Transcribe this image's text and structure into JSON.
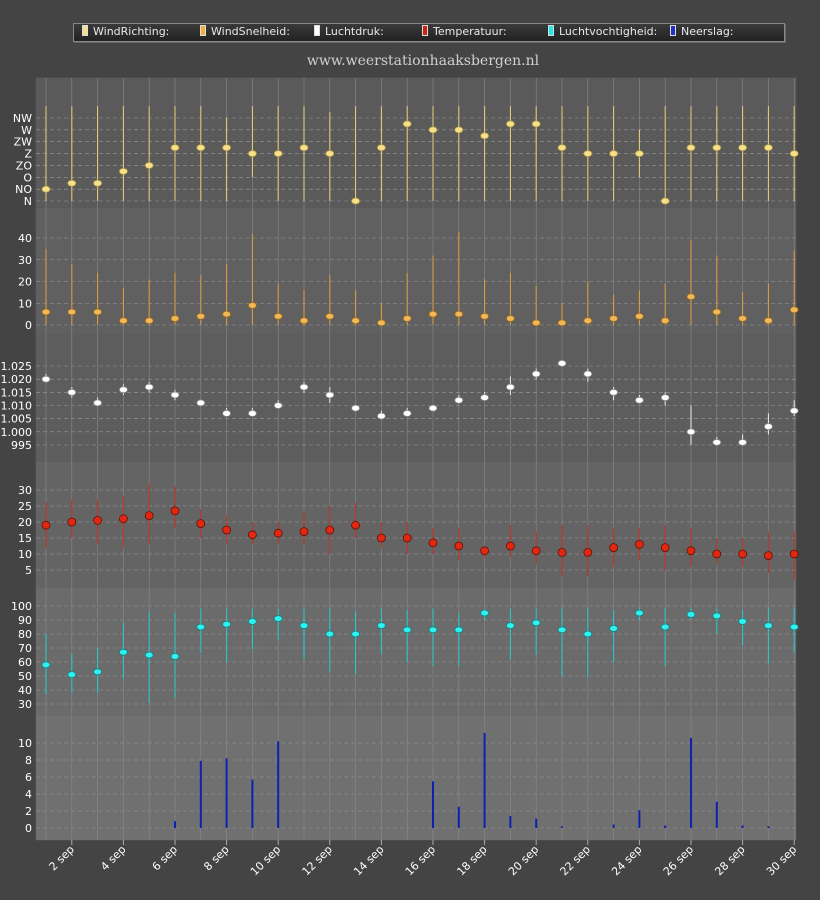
{
  "legend": {
    "items": [
      {
        "label": "WindRichting:",
        "color": "#f5e08c"
      },
      {
        "label": "WindSnelheid:",
        "color": "#f0b040"
      },
      {
        "label": "Luchtdruk:",
        "color": "#ffffff"
      },
      {
        "label": "Temperatuur:",
        "color": "#d02010"
      },
      {
        "label": "Luchtvochtigheid:",
        "color": "#20e8e8"
      },
      {
        "label": "Neerslag:",
        "color": "#2030c8"
      }
    ]
  },
  "site_title": "www.weerstationhaaksbergen.nl",
  "chart_data": {
    "type": "line",
    "grid": true,
    "x": [
      "1 sep",
      "2 sep",
      "3 sep",
      "4 sep",
      "5 sep",
      "6 sep",
      "7 sep",
      "8 sep",
      "9 sep",
      "10 sep",
      "11 sep",
      "12 sep",
      "13 sep",
      "14 sep",
      "15 sep",
      "16 sep",
      "17 sep",
      "18 sep",
      "19 sep",
      "20 sep",
      "21 sep",
      "22 sep",
      "23 sep",
      "24 sep",
      "25 sep",
      "26 sep",
      "27 sep",
      "28 sep",
      "29 sep",
      "30 sep"
    ],
    "x_tick_labels": [
      "2 sep",
      "4 sep",
      "6 sep",
      "8 sep",
      "10 sep",
      "12 sep",
      "14 sep",
      "16 sep",
      "18 sep",
      "20 sep",
      "22 sep",
      "24 sep",
      "26 sep",
      "28 sep",
      "30 sep"
    ],
    "panels": [
      {
        "name": "WindRichting",
        "type": "scatter",
        "y_tick_labels": [
          "N",
          "NO",
          "O",
          "ZO",
          "Z",
          "ZW",
          "W",
          "NW"
        ],
        "ylim": [
          0,
          7
        ],
        "values": [
          1,
          1.5,
          1.5,
          2.5,
          3,
          4.5,
          4.5,
          4.5,
          4,
          4,
          4.5,
          4,
          0,
          4.5,
          6.5,
          6,
          6,
          5.5,
          6.5,
          6.5,
          4.5,
          4,
          4,
          4,
          0,
          4.5,
          4.5,
          4.5,
          4.5,
          4
        ],
        "low": [
          0,
          0,
          0,
          0,
          0,
          0,
          0,
          0,
          2,
          0,
          0,
          0,
          0,
          0,
          0,
          0,
          0,
          0,
          0,
          0,
          0,
          0,
          0,
          2,
          0,
          0,
          0,
          0,
          0,
          0
        ],
        "high": [
          8,
          8,
          8,
          8,
          8,
          8,
          8,
          7,
          8,
          8,
          8,
          7.5,
          8,
          8,
          8,
          8,
          8,
          8,
          8,
          8,
          8,
          8,
          8,
          6,
          8,
          8,
          8,
          8,
          8,
          8
        ]
      },
      {
        "name": "WindSnelheid",
        "type": "scatter",
        "y_tick_labels": [
          "0",
          "10",
          "20",
          "30",
          "40"
        ],
        "ylim": [
          0,
          45
        ],
        "values": [
          6,
          6,
          6,
          2,
          2,
          3,
          4,
          5,
          9,
          4,
          2,
          4,
          2,
          1,
          3,
          5,
          5,
          4,
          3,
          1,
          1,
          2,
          3,
          4,
          2,
          13,
          6,
          3,
          2,
          7
        ],
        "low": [
          0,
          0,
          0,
          0,
          0,
          0,
          0,
          0,
          0,
          0,
          0,
          0,
          0,
          0,
          0,
          0,
          0,
          0,
          0,
          0,
          0,
          0,
          0,
          0,
          0,
          0,
          0,
          0,
          0,
          0
        ],
        "high": [
          35,
          28,
          24,
          17,
          21,
          24,
          23,
          28,
          42,
          19,
          16,
          23,
          16,
          10,
          24,
          32,
          43,
          21,
          24,
          18,
          10,
          20,
          14,
          16,
          19,
          39,
          32,
          15,
          19,
          34
        ]
      },
      {
        "name": "Luchtdruk",
        "type": "scatter",
        "y_tick_labels": [
          "995",
          "1.000",
          "1.005",
          "1.010",
          "1.015",
          "1.020",
          "1.025"
        ],
        "ylim": [
          992,
          1029
        ],
        "values": [
          1020,
          1015,
          1011,
          1016,
          1017,
          1014,
          1011,
          1007,
          1007,
          1010,
          1017,
          1014,
          1009,
          1006,
          1007,
          1009,
          1012,
          1013,
          1017,
          1022,
          1026,
          1022,
          1015,
          1012,
          1013,
          1000,
          996,
          996,
          1002,
          1008
        ],
        "low": [
          1019,
          1013,
          1010,
          1014,
          1015,
          1012,
          1010,
          1006,
          1006,
          1009,
          1015,
          1011,
          1008,
          1005,
          1006,
          1008,
          1011,
          1012,
          1014,
          1020,
          1025,
          1019,
          1012,
          1011,
          1010,
          995,
          995,
          995,
          999,
          1006
        ],
        "high": [
          1022,
          1017,
          1013,
          1018,
          1019,
          1016,
          1012,
          1009,
          1009,
          1012,
          1019,
          1017,
          1010,
          1008,
          1009,
          1010,
          1014,
          1015,
          1021,
          1024,
          1027,
          1024,
          1017,
          1014,
          1015,
          1010,
          998,
          999,
          1007,
          1012
        ]
      },
      {
        "name": "Temperatuur",
        "type": "scatter",
        "y_tick_labels": [
          "5",
          "10",
          "15",
          "20",
          "25",
          "30"
        ],
        "ylim": [
          2,
          35
        ],
        "values": [
          19,
          20,
          20.5,
          21,
          22,
          23.5,
          19.5,
          17.5,
          16,
          16.5,
          17,
          17.5,
          19,
          15,
          15,
          13.5,
          12.5,
          11,
          12.5,
          11,
          10.5,
          10.5,
          12,
          13,
          12,
          11,
          10,
          10,
          9.5,
          10
        ],
        "low": [
          12,
          15,
          13,
          12,
          13,
          18,
          15,
          13,
          13,
          13,
          13,
          10,
          15,
          12,
          10,
          10,
          8,
          9,
          9,
          7,
          3,
          3,
          6,
          8,
          5,
          6,
          7,
          6,
          4,
          2
        ],
        "high": [
          26,
          27,
          27,
          28,
          32,
          31,
          24,
          22,
          20,
          20,
          23,
          25,
          26,
          20,
          20,
          18,
          18,
          12,
          19,
          17,
          19,
          19,
          18,
          18,
          19,
          18,
          15,
          15,
          17,
          17
        ]
      },
      {
        "name": "Luchtvochtigheid",
        "type": "scatter",
        "y_tick_labels": [
          "30",
          "40",
          "50",
          "60",
          "70",
          "80",
          "90",
          "100"
        ],
        "ylim": [
          25,
          103
        ],
        "values": [
          58,
          51,
          53,
          67,
          65,
          64,
          85,
          87,
          89,
          91,
          86,
          80,
          80,
          86,
          83,
          83,
          83,
          95,
          86,
          88,
          83,
          80,
          84,
          95,
          85,
          94,
          93,
          89,
          86,
          85
        ],
        "low": [
          37,
          38,
          38,
          48,
          31,
          34,
          67,
          60,
          69,
          76,
          62,
          53,
          51,
          66,
          60,
          57,
          57,
          90,
          62,
          65,
          50,
          49,
          60,
          90,
          57,
          90,
          80,
          72,
          59,
          67
        ],
        "high": [
          80,
          66,
          70,
          88,
          96,
          95,
          98,
          98,
          98,
          98,
          98,
          99,
          96,
          98,
          97,
          98,
          95,
          98,
          98,
          98,
          99,
          99,
          97,
          99,
          99,
          99,
          98,
          97,
          99,
          99
        ]
      },
      {
        "name": "Neerslag",
        "type": "bar",
        "y_tick_labels": [
          "0",
          "2",
          "4",
          "6",
          "8",
          "10"
        ],
        "ylim": [
          -0.5,
          12
        ],
        "values": [
          0,
          0,
          0,
          0,
          0,
          0.8,
          7.9,
          8.2,
          5.7,
          10.2,
          0,
          0,
          0,
          0,
          0,
          5.5,
          2.5,
          11.2,
          1.4,
          1.1,
          0.2,
          0,
          0.4,
          2.1,
          0.3,
          10.6,
          3.1,
          0.3,
          0.2,
          0
        ]
      }
    ]
  }
}
